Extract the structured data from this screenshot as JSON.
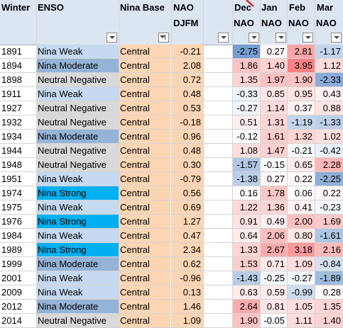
{
  "headers": {
    "winter": "Winter",
    "enso": "ENSO",
    "nina_base": "Nina Base",
    "nao_line1": "NAO",
    "nao_line2": "DJFM",
    "dec_line1": "Dec",
    "dec_line2": "NAO",
    "jan_line1": "Jan",
    "jan_line2": "NAO",
    "feb_line1": "Feb",
    "feb_line2": "NAO",
    "mar_line1": "Mar",
    "mar_line2": "NAO"
  },
  "colors": {
    "header_bg": "#dce6f1",
    "enso_weak": "#c5d9f1",
    "enso_moderate": "#95b3d7",
    "enso_strong": "#00b0f0",
    "enso_neutral": "#d9d9d9",
    "base_orange": "#fcd5b4",
    "scale_positive": "#f8696b",
    "scale_negative": "#5a8ac6"
  },
  "rows": [
    {
      "winter": "1891",
      "enso": "Nina Weak",
      "base": "Central",
      "djfm": "-0.21",
      "dec": "-2.75",
      "jan": "0.27",
      "feb": "2.81",
      "mar": "-1.17"
    },
    {
      "winter": "1894",
      "enso": "Nina Moderate",
      "base": "Central",
      "djfm": "2.08",
      "dec": "1.86",
      "jan": "1.40",
      "feb": "3.95",
      "mar": "1.12"
    },
    {
      "winter": "1898",
      "enso": "Neutral Negative",
      "base": "Central",
      "djfm": "0.72",
      "dec": "1.35",
      "jan": "1.97",
      "feb": "1.90",
      "mar": "-2.33"
    },
    {
      "winter": "1911",
      "enso": "Nina Weak",
      "base": "Central",
      "djfm": "0.48",
      "dec": "-0.33",
      "jan": "0.85",
      "feb": "0.95",
      "mar": "0.43"
    },
    {
      "winter": "1927",
      "enso": "Neutral Negative",
      "base": "Central",
      "djfm": "0.53",
      "dec": "-0.27",
      "jan": "1.14",
      "feb": "0.37",
      "mar": "0.88"
    },
    {
      "winter": "1932",
      "enso": "Neutral Negative",
      "base": "Central",
      "djfm": "-0.18",
      "dec": "0.51",
      "jan": "1.31",
      "feb": "-1.19",
      "mar": "-1.33"
    },
    {
      "winter": "1934",
      "enso": "Nina Moderate",
      "base": "Central",
      "djfm": "0.96",
      "dec": "-0.12",
      "jan": "1.61",
      "feb": "1.32",
      "mar": "1.02"
    },
    {
      "winter": "1944",
      "enso": "Neutral Negative",
      "base": "Central",
      "djfm": "0.48",
      "dec": "1.08",
      "jan": "1.47",
      "feb": "-0.21",
      "mar": "-0.42"
    },
    {
      "winter": "1948",
      "enso": "Neutral Negative",
      "base": "Central",
      "djfm": "0.30",
      "dec": "-1.57",
      "jan": "-0.15",
      "feb": "0.65",
      "mar": "2.28"
    },
    {
      "winter": "1951",
      "enso": "Nina Weak",
      "base": "Central",
      "djfm": "-0.79",
      "dec": "-1.38",
      "jan": "0.27",
      "feb": "0.22",
      "mar": "-2.25"
    },
    {
      "winter": "1974",
      "enso": "Nina Strong",
      "base": "Central",
      "djfm": "0.56",
      "dec": "0.16",
      "jan": "1.78",
      "feb": "0.06",
      "mar": "0.22"
    },
    {
      "winter": "1975",
      "enso": "Nina Weak",
      "base": "Central",
      "djfm": "0.69",
      "dec": "1.22",
      "jan": "1.36",
      "feb": "0.41",
      "mar": "-0.23"
    },
    {
      "winter": "1976",
      "enso": "Nina Strong",
      "base": "Central",
      "djfm": "1.27",
      "dec": "0.91",
      "jan": "0.49",
      "feb": "2.00",
      "mar": "1.69"
    },
    {
      "winter": "1984",
      "enso": "Nina Weak",
      "base": "Central",
      "djfm": "0.47",
      "dec": "0.64",
      "jan": "2.06",
      "feb": "0.80",
      "mar": "-1.61"
    },
    {
      "winter": "1989",
      "enso": "Nina Strong",
      "base": "Central",
      "djfm": "2.34",
      "dec": "1.33",
      "jan": "2.67",
      "feb": "3.18",
      "mar": "2.16"
    },
    {
      "winter": "1999",
      "enso": "Nina Moderate",
      "base": "Central",
      "djfm": "0.62",
      "dec": "1.53",
      "jan": "0.71",
      "feb": "1.09",
      "mar": "-0.84"
    },
    {
      "winter": "2001",
      "enso": "Nina Weak",
      "base": "Central",
      "djfm": "-0.96",
      "dec": "-1.43",
      "jan": "-0.25",
      "feb": "-0.27",
      "mar": "-1.89"
    },
    {
      "winter": "2009",
      "enso": "Nina Weak",
      "base": "Central",
      "djfm": "0.13",
      "dec": "0.63",
      "jan": "0.59",
      "feb": "-0.99",
      "mar": "0.28"
    },
    {
      "winter": "2012",
      "enso": "Nina Moderate",
      "base": "Central",
      "djfm": "1.46",
      "dec": "2.64",
      "jan": "0.81",
      "feb": "1.05",
      "mar": "1.35"
    },
    {
      "winter": "2014",
      "enso": "Neutral Negative",
      "base": "Central",
      "djfm": "1.09",
      "dec": "1.90",
      "jan": "-0.05",
      "feb": "1.11",
      "mar": "1.40"
    }
  ]
}
